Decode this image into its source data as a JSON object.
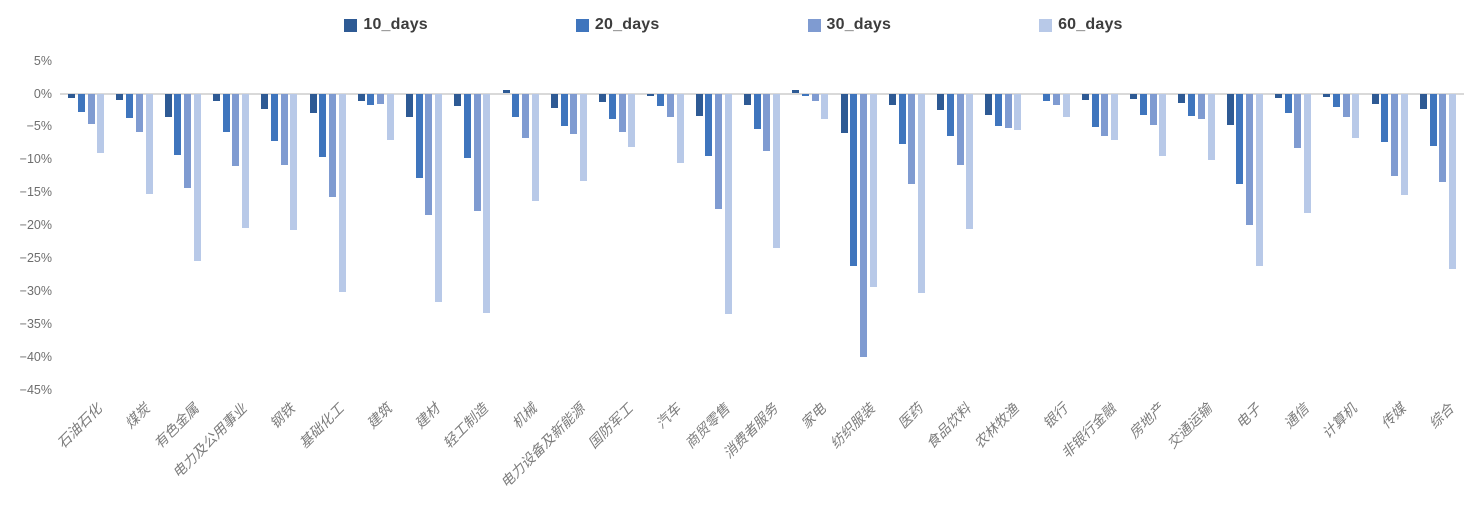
{
  "chart_data": {
    "type": "bar",
    "title": "",
    "xlabel": "",
    "ylabel": "",
    "unit": "%",
    "grid": false,
    "legend_position": "top",
    "ylim": [
      -45,
      5
    ],
    "y_ticks": [
      {
        "label": "5%",
        "v": 5
      },
      {
        "label": "0%",
        "v": 0
      },
      {
        "label": "−5%",
        "v": -5
      },
      {
        "label": "−10%",
        "v": -10
      },
      {
        "label": "−15%",
        "v": -15
      },
      {
        "label": "−20%",
        "v": -20
      },
      {
        "label": "−25%",
        "v": -25
      },
      {
        "label": "−30%",
        "v": -30
      },
      {
        "label": "−35%",
        "v": -35
      },
      {
        "label": "−40%",
        "v": -40
      },
      {
        "label": "−45%",
        "v": -45
      }
    ],
    "categories": [
      "石油石化",
      "煤炭",
      "有色金属",
      "电力及公用事业",
      "钢铁",
      "基础化工",
      "建筑",
      "建材",
      "轻工制造",
      "机械",
      "电力设备及新能源",
      "国防军工",
      "汽车",
      "商贸零售",
      "消费者服务",
      "家电",
      "纺织服装",
      "医药",
      "食品饮料",
      "农林牧渔",
      "银行",
      "非银行金融",
      "房地产",
      "交通运输",
      "电子",
      "通信",
      "计算机",
      "传媒",
      "综合"
    ],
    "series": [
      {
        "name": "10_days",
        "color": "#2e5a94",
        "values": [
          -0.7,
          -1.0,
          -3.5,
          -1.1,
          -2.3,
          -2.9,
          -1.1,
          -3.5,
          -1.9,
          0.5,
          -2.2,
          -1.3,
          -0.4,
          -3.4,
          -1.8,
          0.5,
          -6.0,
          -1.8,
          -2.5,
          -3.3,
          0.0,
          -1.0,
          -0.9,
          -1.4,
          -4.8,
          -0.7,
          -0.6,
          -1.6,
          -2.3
        ]
      },
      {
        "name": "20_days",
        "color": "#3f75bd",
        "values": [
          -2.8,
          -3.7,
          -9.3,
          -5.8,
          -7.2,
          -9.6,
          -1.8,
          -12.8,
          -9.8,
          -3.5,
          -5.0,
          -3.9,
          -1.9,
          -9.5,
          -5.4,
          -0.4,
          -26.2,
          -7.6,
          -6.5,
          -5.0,
          -1.1,
          -5.1,
          -3.3,
          -3.4,
          -13.7,
          -3.0,
          -2.0,
          -7.3,
          -8.0
        ]
      },
      {
        "name": "30_days",
        "color": "#7f9bd1",
        "values": [
          -4.7,
          -5.9,
          -14.3,
          -11.0,
          -10.9,
          -15.7,
          -1.6,
          -18.4,
          -17.9,
          -6.7,
          -6.2,
          -5.9,
          -3.5,
          -17.5,
          -8.7,
          -1.1,
          -40.0,
          -13.7,
          -10.9,
          -5.2,
          -1.8,
          -6.4,
          -4.8,
          -3.9,
          -20.0,
          -8.2,
          -3.6,
          -12.5,
          -13.4
        ]
      },
      {
        "name": "60_days",
        "color": "#b8c9e8",
        "values": [
          -9.1,
          -15.2,
          -25.4,
          -20.5,
          -20.7,
          -30.1,
          -7.0,
          -31.7,
          -33.3,
          -16.3,
          -13.3,
          -8.1,
          -10.5,
          -33.5,
          -23.5,
          -3.9,
          -29.4,
          -30.3,
          -20.6,
          -5.5,
          -3.6,
          -7.0,
          -9.5,
          -10.1,
          -26.2,
          -18.1,
          -6.7,
          -15.4,
          -26.7
        ]
      }
    ],
    "colors": {
      "axis_line": "#d9d9d9",
      "tick_text": "#6e6e6e",
      "category_text": "#7c7c7c",
      "legend_text": "#3d3d3d",
      "background": "#ffffff"
    }
  }
}
